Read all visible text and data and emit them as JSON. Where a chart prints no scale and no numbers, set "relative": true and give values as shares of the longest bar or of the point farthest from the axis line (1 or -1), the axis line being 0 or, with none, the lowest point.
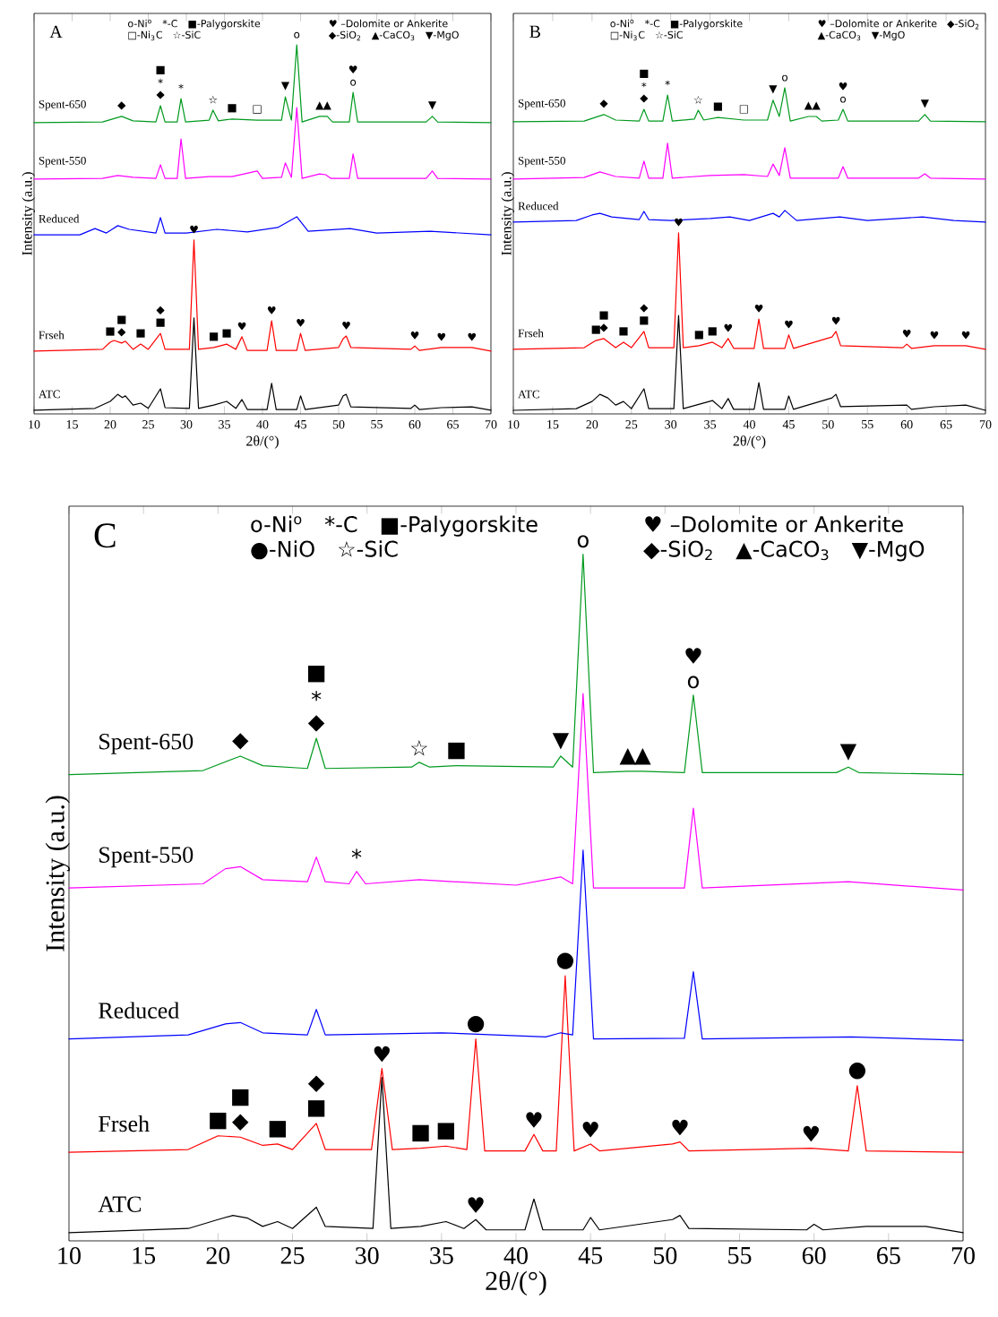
{
  "chart_data": [
    {
      "type": "line",
      "title": "A",
      "xlabel": "2θ/(°)",
      "ylabel": "Intensity (a.u.)",
      "relative": true,
      "xlim": [
        10,
        70
      ],
      "xticks": [
        10,
        15,
        20,
        25,
        30,
        35,
        40,
        45,
        50,
        55,
        60,
        65,
        70
      ],
      "series": [
        {
          "name": "ATC",
          "color": "#000000",
          "x": [
            10,
            18,
            20,
            21,
            21.6,
            22,
            23,
            24,
            25,
            26.6,
            27.2,
            30.4,
            31,
            31.6,
            33.6,
            35.3,
            36.5,
            37.3,
            38,
            40.6,
            41.2,
            41.8,
            44.5,
            45,
            45.6,
            50,
            50.6,
            51,
            51.6,
            59.5,
            60,
            60.6,
            63.5,
            67.5,
            70
          ],
          "values": [
            0.01,
            0.015,
            0.034,
            0.053,
            0.044,
            0.049,
            0.024,
            0.029,
            0.015,
            0.068,
            0.017,
            0.015,
            0.26,
            0.015,
            0.024,
            0.034,
            0.015,
            0.039,
            0.012,
            0.012,
            0.083,
            0.012,
            0.012,
            0.049,
            0.012,
            0.024,
            0.049,
            0.053,
            0.019,
            0.015,
            0.024,
            0.012,
            0.017,
            0.019,
            0.01
          ]
        },
        {
          "name": "Frseh",
          "color": "#ff0000",
          "x": [
            10,
            19,
            20,
            20.5,
            21.5,
            22,
            23,
            24,
            25,
            26.6,
            27.2,
            30.4,
            31,
            31.6,
            33.6,
            35.3,
            36.5,
            37.3,
            38,
            40.6,
            41.2,
            41.8,
            44.5,
            45,
            45.6,
            50,
            50.6,
            51,
            51.6,
            59.5,
            60,
            60.6,
            63.5,
            67.5,
            70
          ],
          "values": [
            0.17,
            0.175,
            0.194,
            0.199,
            0.192,
            0.197,
            0.175,
            0.189,
            0.175,
            0.218,
            0.175,
            0.175,
            0.471,
            0.175,
            0.18,
            0.189,
            0.175,
            0.209,
            0.172,
            0.172,
            0.252,
            0.172,
            0.172,
            0.218,
            0.172,
            0.18,
            0.204,
            0.211,
            0.18,
            0.175,
            0.184,
            0.172,
            0.18,
            0.18,
            0.17
          ]
        },
        {
          "name": "Reduced",
          "color": "#0000ff",
          "x": [
            10,
            16,
            18,
            19.5,
            21,
            22.5,
            26,
            26.6,
            27.2,
            30,
            34,
            38,
            42,
            44.5,
            46,
            51.5,
            55,
            62,
            70
          ],
          "values": [
            0.485,
            0.485,
            0.502,
            0.49,
            0.51,
            0.5,
            0.49,
            0.532,
            0.49,
            0.49,
            0.5,
            0.493,
            0.505,
            0.534,
            0.495,
            0.502,
            0.49,
            0.495,
            0.485
          ]
        },
        {
          "name": "Spent-550",
          "color": "#ff00ff",
          "x": [
            10,
            19,
            21,
            23,
            26,
            26.6,
            27.2,
            28.8,
            29.3,
            29.9,
            33,
            36,
            39.3,
            40,
            42.5,
            43,
            43.8,
            44.5,
            45.2,
            47.5,
            48.3,
            49,
            51.4,
            51.9,
            52.5,
            61.5,
            62.3,
            63,
            70
          ],
          "values": [
            0.636,
            0.638,
            0.646,
            0.641,
            0.638,
            0.675,
            0.638,
            0.638,
            0.745,
            0.638,
            0.643,
            0.643,
            0.658,
            0.638,
            0.641,
            0.68,
            0.641,
            0.83,
            0.638,
            0.65,
            0.648,
            0.638,
            0.638,
            0.704,
            0.638,
            0.638,
            0.658,
            0.638,
            0.636
          ]
        },
        {
          "name": "Spent-650",
          "color": "#009a1e",
          "x": [
            10,
            19,
            21.5,
            23,
            26,
            26.6,
            27.2,
            28.8,
            29.3,
            29.9,
            33,
            33.5,
            34.2,
            36,
            39.3,
            42.5,
            43,
            43.8,
            44.5,
            45.2,
            47.5,
            48.5,
            49.2,
            51.4,
            51.9,
            52.5,
            61.5,
            62.3,
            63,
            70
          ],
          "values": [
            0.789,
            0.791,
            0.806,
            0.794,
            0.791,
            0.835,
            0.791,
            0.791,
            0.854,
            0.791,
            0.796,
            0.823,
            0.794,
            0.799,
            0.796,
            0.796,
            0.859,
            0.796,
            1.0,
            0.791,
            0.806,
            0.806,
            0.791,
            0.791,
            0.871,
            0.791,
            0.791,
            0.806,
            0.791,
            0.789
          ]
        }
      ],
      "annotations": [
        "o-Ni$^{o}$",
        "*-C",
        "■-Palygorskite",
        "□-Ni$_{3}$C",
        "☆-SiC",
        "♥ –Dolomite or Ankerite",
        "◆-SiO$_{2}$",
        "▲-CaCO$_{3}$",
        "▼-MgO",
        {
          "text": "◆",
          "x": 21.5,
          "y": 0.806
        },
        {
          "text": "◆",
          "x": 26.6,
          "y": 0.835
        },
        {
          "text": "*",
          "x": 26.6,
          "y": 0.835
        },
        {
          "text": "■",
          "x": 26.6,
          "y": 0.835
        },
        {
          "text": "*",
          "x": 29.3,
          "y": 0.854
        },
        {
          "text": "☆",
          "x": 33.5,
          "y": 0.823
        },
        {
          "text": "■",
          "x": 36,
          "y": 0.799
        },
        {
          "text": "□",
          "x": 39.3,
          "y": 0.796
        },
        {
          "text": "▼",
          "x": 43,
          "y": 0.859
        },
        {
          "text": "o",
          "x": 44.5,
          "y": 1.0
        },
        {
          "text": "▲",
          "x": 47.5,
          "y": 0.806
        },
        {
          "text": "▲",
          "x": 48.5,
          "y": 0.806
        },
        {
          "text": "o",
          "x": 51.9,
          "y": 0.871
        },
        {
          "text": "♥",
          "x": 51.9,
          "y": 0.871
        },
        {
          "text": "▼",
          "x": 62.3,
          "y": 0.806
        },
        {
          "text": "■",
          "x": 20,
          "y": 0.194
        },
        {
          "text": "◆",
          "x": 21.5,
          "y": 0.192
        },
        {
          "text": "■",
          "x": 21.5,
          "y": 0.192
        },
        {
          "text": "■",
          "x": 24,
          "y": 0.189
        },
        {
          "text": "■",
          "x": 26.6,
          "y": 0.218
        },
        {
          "text": "◆",
          "x": 26.6,
          "y": 0.218
        },
        {
          "text": "♥",
          "x": 31,
          "y": 0.471
        },
        {
          "text": "■",
          "x": 33.6,
          "y": 0.18
        },
        {
          "text": "■",
          "x": 35.3,
          "y": 0.189
        },
        {
          "text": "♥",
          "x": 37.3,
          "y": 0.209
        },
        {
          "text": "♥",
          "x": 41.2,
          "y": 0.252
        },
        {
          "text": "♥",
          "x": 45,
          "y": 0.218
        },
        {
          "text": "♥",
          "x": 51,
          "y": 0.211
        },
        {
          "text": "♥",
          "x": 60,
          "y": 0.184
        },
        {
          "text": "♥",
          "x": 63.5,
          "y": 0.18
        },
        {
          "text": "♥",
          "x": 67.5,
          "y": 0.18
        }
      ]
    },
    {
      "type": "line",
      "title": "B",
      "xlabel": "2θ/(°)",
      "ylabel": "Intensity (a.u.)",
      "relative": true,
      "xlim": [
        10,
        70
      ],
      "xticks": [
        10,
        15,
        20,
        25,
        30,
        35,
        40,
        45,
        50,
        55,
        60,
        65,
        70
      ],
      "series": [
        {
          "name": "ATC",
          "color": "#000000",
          "x": [
            10,
            18,
            20,
            21,
            22,
            23,
            24,
            25,
            26.6,
            27.2,
            30.4,
            31,
            31.6,
            35.3,
            36.5,
            37.3,
            38,
            40.6,
            41.2,
            41.8,
            44.5,
            45,
            45.6,
            50.5,
            51,
            51.6,
            60,
            60.6,
            63.5,
            67.5,
            70
          ],
          "values": [
            0.011,
            0.016,
            0.038,
            0.06,
            0.049,
            0.027,
            0.038,
            0.016,
            0.077,
            0.016,
            0.016,
            0.302,
            0.016,
            0.041,
            0.016,
            0.047,
            0.014,
            0.014,
            0.096,
            0.014,
            0.014,
            0.055,
            0.014,
            0.049,
            0.06,
            0.022,
            0.027,
            0.014,
            0.022,
            0.027,
            0.011
          ]
        },
        {
          "name": "Frseh",
          "color": "#ff0000",
          "x": [
            10,
            19,
            20.5,
            21.5,
            23,
            24,
            25,
            26.6,
            27.2,
            30.4,
            31,
            31.6,
            33.6,
            35.3,
            36.5,
            37.3,
            38,
            40.6,
            41.2,
            41.8,
            44.5,
            45,
            45.6,
            50.5,
            51,
            51.6,
            59.5,
            60,
            60.6,
            63.5,
            67.5,
            70
          ],
          "values": [
            0.198,
            0.203,
            0.225,
            0.231,
            0.203,
            0.22,
            0.203,
            0.253,
            0.203,
            0.203,
            0.555,
            0.203,
            0.209,
            0.22,
            0.203,
            0.231,
            0.201,
            0.201,
            0.291,
            0.201,
            0.201,
            0.242,
            0.201,
            0.236,
            0.253,
            0.209,
            0.203,
            0.214,
            0.201,
            0.209,
            0.209,
            0.198
          ]
        },
        {
          "name": "Reduced",
          "color": "#0000ff",
          "x": [
            10,
            18,
            20,
            21,
            22.5,
            26,
            26.6,
            27.2,
            30,
            35,
            37.5,
            40,
            43,
            43.8,
            44.5,
            46,
            51.5,
            55,
            62,
            66,
            70
          ],
          "values": [
            0.588,
            0.593,
            0.61,
            0.615,
            0.604,
            0.596,
            0.621,
            0.596,
            0.593,
            0.599,
            0.604,
            0.593,
            0.615,
            0.604,
            0.624,
            0.593,
            0.604,
            0.593,
            0.604,
            0.593,
            0.588
          ]
        },
        {
          "name": "Spent-550",
          "color": "#ff00ff",
          "x": [
            10,
            19,
            21,
            23,
            26,
            26.6,
            27.2,
            29,
            29.6,
            30.2,
            35,
            39.3,
            42.3,
            43,
            43.8,
            44.5,
            45.2,
            51.3,
            51.9,
            52.5,
            61.5,
            62.3,
            63,
            70
          ],
          "values": [
            0.72,
            0.725,
            0.742,
            0.728,
            0.723,
            0.775,
            0.723,
            0.723,
            0.83,
            0.723,
            0.731,
            0.734,
            0.728,
            0.766,
            0.731,
            0.816,
            0.723,
            0.723,
            0.758,
            0.723,
            0.723,
            0.736,
            0.723,
            0.72
          ]
        },
        {
          "name": "Spent-650",
          "color": "#009a1e",
          "x": [
            10,
            19,
            21.5,
            23,
            26,
            26.6,
            27.2,
            29,
            29.6,
            30.2,
            33,
            33.5,
            34.2,
            36,
            39.3,
            42.3,
            43,
            43.8,
            44.5,
            45.2,
            47.5,
            48.5,
            49.2,
            51.3,
            51.9,
            52.5,
            61.5,
            62.3,
            63,
            70
          ],
          "values": [
            0.896,
            0.898,
            0.918,
            0.901,
            0.898,
            0.934,
            0.898,
            0.898,
            0.978,
            0.898,
            0.904,
            0.931,
            0.901,
            0.909,
            0.901,
            0.901,
            0.962,
            0.912,
            1.0,
            0.898,
            0.912,
            0.912,
            0.898,
            0.901,
            0.934,
            0.898,
            0.898,
            0.918,
            0.898,
            0.896
          ]
        }
      ],
      "annotations": [
        "o-Ni$^{o}$",
        "*-C",
        "■-Palygorskite",
        "□-Ni$_{3}$C",
        "☆-SiC",
        "♥ –Dolomite or Ankerite",
        "◆-SiO$_{2}$",
        "▲-CaCO$_{3}$",
        "▼-MgO",
        {
          "text": "◆",
          "x": 21.5,
          "y": 0.918
        },
        {
          "text": "◆",
          "x": 26.6,
          "y": 0.934
        },
        {
          "text": "*",
          "x": 26.6,
          "y": 0.934
        },
        {
          "text": "■",
          "x": 26.6,
          "y": 0.934
        },
        {
          "text": "*",
          "x": 29.6,
          "y": 0.978
        },
        {
          "text": "☆",
          "x": 33.5,
          "y": 0.931
        },
        {
          "text": "■",
          "x": 36,
          "y": 0.909
        },
        {
          "text": "□",
          "x": 39.3,
          "y": 0.901
        },
        {
          "text": "▼",
          "x": 43,
          "y": 0.962
        },
        {
          "text": "o",
          "x": 44.5,
          "y": 1.0
        },
        {
          "text": "▲",
          "x": 47.5,
          "y": 0.912
        },
        {
          "text": "▲",
          "x": 48.5,
          "y": 0.912
        },
        {
          "text": "o",
          "x": 51.9,
          "y": 0.934
        },
        {
          "text": "♥",
          "x": 51.9,
          "y": 0.934
        },
        {
          "text": "▼",
          "x": 62.3,
          "y": 0.918
        },
        {
          "text": "■",
          "x": 20.5,
          "y": 0.225
        },
        {
          "text": "◆",
          "x": 21.5,
          "y": 0.231
        },
        {
          "text": "■",
          "x": 21.5,
          "y": 0.231
        },
        {
          "text": "■",
          "x": 24,
          "y": 0.22
        },
        {
          "text": "■",
          "x": 26.6,
          "y": 0.253
        },
        {
          "text": "◆",
          "x": 26.6,
          "y": 0.253
        },
        {
          "text": "♥",
          "x": 31,
          "y": 0.555
        },
        {
          "text": "■",
          "x": 33.6,
          "y": 0.209
        },
        {
          "text": "■",
          "x": 35.3,
          "y": 0.22
        },
        {
          "text": "♥",
          "x": 37.3,
          "y": 0.231
        },
        {
          "text": "♥",
          "x": 41.2,
          "y": 0.291
        },
        {
          "text": "♥",
          "x": 45,
          "y": 0.242
        },
        {
          "text": "♥",
          "x": 51,
          "y": 0.253
        },
        {
          "text": "♥",
          "x": 60,
          "y": 0.214
        },
        {
          "text": "♥",
          "x": 63.5,
          "y": 0.209
        },
        {
          "text": "♥",
          "x": 67.5,
          "y": 0.209
        }
      ]
    },
    {
      "type": "line",
      "title": "C",
      "xlabel": "2θ/(°)",
      "ylabel": "Intensity (a.u.)",
      "relative": true,
      "xlim": [
        10,
        70
      ],
      "xticks": [
        10,
        15,
        20,
        25,
        30,
        35,
        40,
        45,
        50,
        55,
        60,
        65,
        70
      ],
      "series": [
        {
          "name": "ATC",
          "color": "#000000",
          "x": [
            10,
            18,
            20,
            21,
            22,
            23,
            24,
            25,
            26.6,
            27.2,
            30.4,
            31,
            31.6,
            33.6,
            35.3,
            36.5,
            37.3,
            38,
            40.6,
            41.2,
            41.8,
            44.5,
            45,
            45.6,
            50.5,
            51,
            51.6,
            59.5,
            60,
            60.6,
            63.5,
            67.5,
            70
          ],
          "values": [
            0.012,
            0.018,
            0.031,
            0.037,
            0.033,
            0.021,
            0.028,
            0.018,
            0.049,
            0.021,
            0.018,
            0.238,
            0.018,
            0.021,
            0.028,
            0.018,
            0.031,
            0.016,
            0.016,
            0.061,
            0.016,
            0.016,
            0.034,
            0.016,
            0.031,
            0.037,
            0.018,
            0.016,
            0.024,
            0.016,
            0.021,
            0.021,
            0.012
          ]
        },
        {
          "name": "Frseh",
          "color": "#ff0000",
          "x": [
            10,
            18,
            20,
            21.5,
            23,
            24,
            25,
            26.6,
            27.2,
            30.3,
            31,
            31.7,
            33.6,
            35.3,
            36.7,
            37.3,
            37.9,
            40.6,
            41.2,
            41.8,
            42.7,
            43.3,
            43.9,
            45,
            45.6,
            50.5,
            51,
            51.6,
            59.8,
            62.3,
            62.9,
            63.5,
            70
          ],
          "values": [
            0.129,
            0.133,
            0.153,
            0.151,
            0.139,
            0.141,
            0.133,
            0.171,
            0.133,
            0.133,
            0.251,
            0.133,
            0.135,
            0.138,
            0.133,
            0.294,
            0.131,
            0.131,
            0.155,
            0.131,
            0.131,
            0.386,
            0.131,
            0.141,
            0.131,
            0.141,
            0.144,
            0.131,
            0.135,
            0.131,
            0.226,
            0.131,
            0.129
          ]
        },
        {
          "name": "Reduced",
          "color": "#0000ff",
          "x": [
            10,
            18,
            20.5,
            21.5,
            23,
            26,
            26.6,
            27.2,
            35,
            42,
            43,
            43.8,
            44.5,
            45.2,
            51.3,
            51.9,
            52.5,
            62.5,
            70
          ],
          "values": [
            0.294,
            0.3,
            0.316,
            0.318,
            0.303,
            0.3,
            0.337,
            0.3,
            0.303,
            0.297,
            0.303,
            0.3,
            0.569,
            0.294,
            0.295,
            0.392,
            0.294,
            0.297,
            0.292
          ]
        },
        {
          "name": "Spent-550",
          "color": "#ff00ff",
          "x": [
            10,
            19,
            20.5,
            21.5,
            23,
            26,
            26.6,
            27.2,
            28.8,
            29.3,
            29.9,
            33.5,
            40,
            43,
            43.8,
            44.5,
            45.2,
            51.3,
            51.9,
            52.5,
            62.3,
            70
          ],
          "values": [
            0.514,
            0.52,
            0.542,
            0.545,
            0.526,
            0.523,
            0.559,
            0.523,
            0.52,
            0.538,
            0.52,
            0.526,
            0.518,
            0.53,
            0.52,
            0.797,
            0.514,
            0.514,
            0.63,
            0.514,
            0.523,
            0.511
          ]
        },
        {
          "name": "Spent-650",
          "color": "#009a1e",
          "x": [
            10,
            19,
            21.5,
            23,
            26,
            26.6,
            27.2,
            33,
            33.5,
            34.2,
            36,
            42.5,
            43,
            43.8,
            44.5,
            45.2,
            47.5,
            48.5,
            51.3,
            51.9,
            52.5,
            61.5,
            62.3,
            63,
            70
          ],
          "values": [
            0.679,
            0.685,
            0.706,
            0.692,
            0.688,
            0.732,
            0.688,
            0.69,
            0.697,
            0.69,
            0.692,
            0.69,
            0.706,
            0.69,
            1.0,
            0.682,
            0.684,
            0.684,
            0.682,
            0.795,
            0.682,
            0.682,
            0.69,
            0.682,
            0.679
          ]
        }
      ],
      "annotations": [
        "o-Ni$^{o}$",
        "*-C",
        "■-Palygorskite",
        "●-NiO",
        "☆-SiC",
        "♥ –Dolomite or Ankerite",
        "◆-SiO$_{2}$",
        "▲-CaCO$_{3}$",
        "▼-MgO",
        {
          "text": "◆",
          "x": 21.5,
          "y": 0.706
        },
        {
          "text": "◆",
          "x": 26.6,
          "y": 0.732
        },
        {
          "text": "*",
          "x": 26.6,
          "y": 0.732
        },
        {
          "text": "■",
          "x": 26.6,
          "y": 0.732
        },
        {
          "text": "☆",
          "x": 33.5,
          "y": 0.697
        },
        {
          "text": "■",
          "x": 36,
          "y": 0.692
        },
        {
          "text": "▼",
          "x": 43,
          "y": 0.706
        },
        {
          "text": "o",
          "x": 44.5,
          "y": 1.0
        },
        {
          "text": "▲",
          "x": 47.5,
          "y": 0.684
        },
        {
          "text": "▲",
          "x": 48.5,
          "y": 0.684
        },
        {
          "text": "o",
          "x": 51.9,
          "y": 0.795
        },
        {
          "text": "♥",
          "x": 51.9,
          "y": 0.795
        },
        {
          "text": "▼",
          "x": 62.3,
          "y": 0.69
        },
        {
          "text": "*",
          "x": 29.3,
          "y": 0.538
        },
        {
          "text": "●",
          "x": 43.3,
          "y": 0.386
        },
        {
          "text": "●",
          "x": 37.3,
          "y": 0.294
        },
        {
          "text": "●",
          "x": 62.9,
          "y": 0.226
        },
        {
          "text": "♥",
          "x": 31,
          "y": 0.251
        },
        {
          "text": "■",
          "x": 20,
          "y": 0.153
        },
        {
          "text": "◆",
          "x": 21.5,
          "y": 0.151
        },
        {
          "text": "■",
          "x": 21.5,
          "y": 0.151
        },
        {
          "text": "■",
          "x": 24,
          "y": 0.141
        },
        {
          "text": "■",
          "x": 26.6,
          "y": 0.171
        },
        {
          "text": "◆",
          "x": 26.6,
          "y": 0.171
        },
        {
          "text": "■",
          "x": 33.6,
          "y": 0.135
        },
        {
          "text": "■",
          "x": 35.3,
          "y": 0.138
        },
        {
          "text": "♥",
          "x": 41.2,
          "y": 0.155
        },
        {
          "text": "♥",
          "x": 45,
          "y": 0.141
        },
        {
          "text": "♥",
          "x": 51,
          "y": 0.144
        },
        {
          "text": "♥",
          "x": 59.8,
          "y": 0.135
        },
        {
          "text": "♥",
          "x": 37.3,
          "y": 0.031
        }
      ]
    }
  ]
}
